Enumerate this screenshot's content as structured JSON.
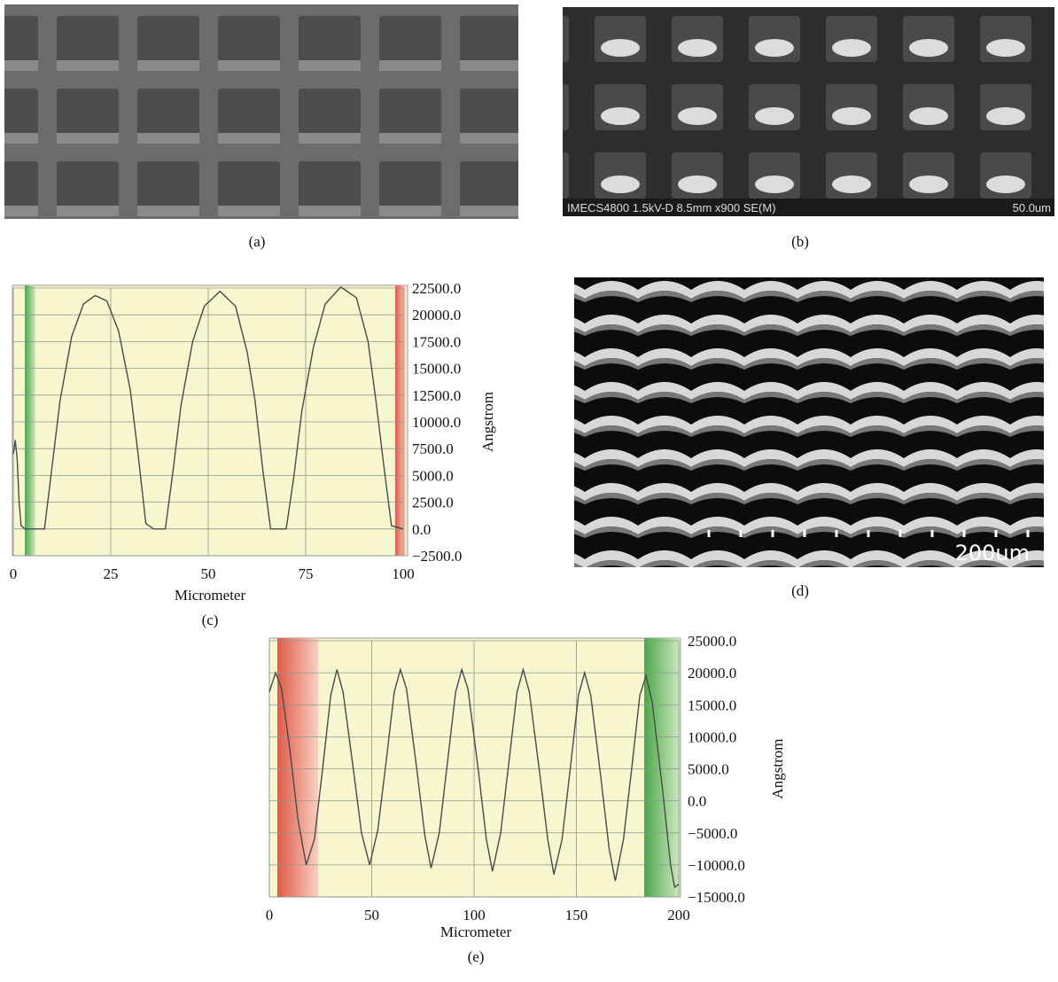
{
  "panels": [
    {
      "caption": "(a)"
    },
    {
      "caption": "(b)",
      "info": "IMECS4800 1.5kV-D 8.5mm x900 SE(M)",
      "scale": "50.0um"
    },
    {
      "caption": "(d)",
      "scale": "200um"
    }
  ],
  "chart_data": [
    {
      "type": "line",
      "caption": "(c)",
      "x_label": "Micrometer",
      "y_label": "Angstrom",
      "grid": true,
      "xlim": [
        0,
        100
      ],
      "xticks": [
        0,
        25,
        50,
        75,
        100
      ],
      "ylim": [
        -2500,
        22500
      ],
      "yticks": [
        {
          "value": -2500,
          "label": "−2500.0"
        },
        {
          "value": 0,
          "label": "0.0"
        },
        {
          "value": 2500,
          "label": "2500.0"
        },
        {
          "value": 5000,
          "label": "5000.0"
        },
        {
          "value": 7500,
          "label": "7500.0"
        },
        {
          "value": 10000,
          "label": "10000.0"
        },
        {
          "value": 12500,
          "label": "12500.0"
        },
        {
          "value": 15000,
          "label": "15000.0"
        },
        {
          "value": 17500,
          "label": "17500.0"
        },
        {
          "value": 20000,
          "label": "20000.0"
        },
        {
          "value": 22500,
          "label": "22500.0"
        }
      ],
      "color": "#4a4a4a",
      "x": [
        0,
        0.5,
        1,
        1.5,
        2,
        3,
        5,
        8,
        10,
        12,
        15,
        18,
        21,
        24,
        27,
        30,
        32,
        34,
        36,
        39,
        41,
        43,
        46,
        49,
        53,
        57,
        60,
        62,
        64,
        66,
        70,
        72,
        74,
        77,
        80,
        84,
        88,
        91,
        93,
        95,
        97,
        100
      ],
      "values": [
        7000,
        8300,
        6500,
        2500,
        300,
        0,
        0,
        0,
        6000,
        12000,
        18000,
        21000,
        21800,
        21300,
        18500,
        13000,
        7000,
        500,
        0,
        0,
        5500,
        11500,
        17500,
        20800,
        22200,
        20800,
        16500,
        12000,
        5500,
        0,
        0,
        5000,
        11000,
        17000,
        21000,
        22600,
        21600,
        17500,
        12000,
        6000,
        300,
        0
      ]
    },
    {
      "type": "line",
      "caption": "(e)",
      "x_label": "Micrometer",
      "y_label": "Angstrom",
      "grid": true,
      "xlim": [
        0,
        200
      ],
      "xticks": [
        0,
        50,
        100,
        150,
        200
      ],
      "ylim": [
        -15000,
        25000
      ],
      "yticks": [
        {
          "value": -15000,
          "label": "−15000.0"
        },
        {
          "value": -10000,
          "label": "−10000.0"
        },
        {
          "value": -5000,
          "label": "−5000.0"
        },
        {
          "value": 0,
          "label": "0.0"
        },
        {
          "value": 5000,
          "label": "5000.0"
        },
        {
          "value": 10000,
          "label": "10000.0"
        },
        {
          "value": 15000,
          "label": "15000.0"
        },
        {
          "value": 20000,
          "label": "20000.0"
        },
        {
          "value": 25000,
          "label": "25000.0"
        }
      ],
      "color": "#4a4a4a",
      "x": [
        0,
        3,
        6,
        10,
        14,
        18,
        22,
        26,
        30,
        33,
        36,
        41,
        45,
        49,
        53,
        57,
        61,
        64,
        67,
        72,
        76,
        79,
        83,
        87,
        91,
        94,
        97,
        102,
        106,
        109,
        113,
        117,
        121,
        124,
        127,
        132,
        136,
        139,
        143,
        147,
        151,
        154,
        157,
        162,
        166,
        169,
        173,
        177,
        181,
        184,
        187,
        192,
        196,
        198,
        200
      ],
      "values": [
        17000,
        20000,
        17500,
        8000,
        -3000,
        -10000,
        -6000,
        5000,
        16500,
        20500,
        17000,
        5000,
        -5000,
        -10000,
        -4500,
        6000,
        17000,
        20500,
        17500,
        5000,
        -5500,
        -10500,
        -5000,
        6000,
        17000,
        20500,
        17500,
        5000,
        -6000,
        -11000,
        -5000,
        6000,
        17000,
        20500,
        17000,
        4500,
        -6000,
        -11500,
        -6000,
        5000,
        16500,
        20000,
        16500,
        3500,
        -7500,
        -12500,
        -6000,
        5000,
        16500,
        19500,
        15500,
        2000,
        -10000,
        -13500,
        -13000
      ]
    }
  ]
}
